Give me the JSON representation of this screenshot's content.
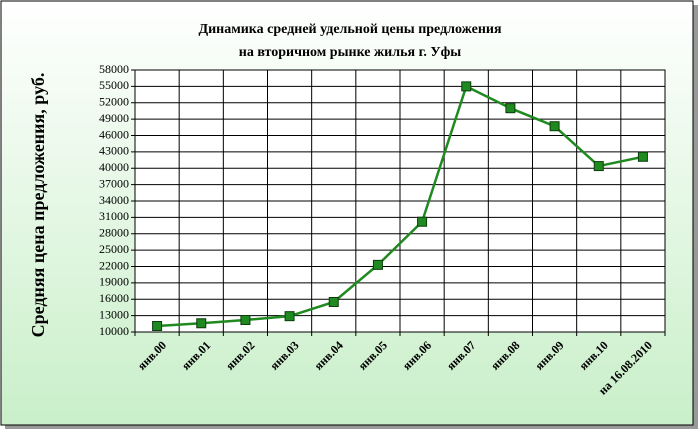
{
  "chart_data": {
    "type": "line",
    "title": [
      "Динамика средней удельной цены предложения",
      "на вторичном рынке жилья г. Уфы"
    ],
    "y_label": "Средняя цена предложения, руб.",
    "categories": [
      "янв.00",
      "янв.01",
      "янв.02",
      "янв.03",
      "янв.04",
      "янв.05",
      "янв.06",
      "янв.07",
      "янв.08",
      "янв.09",
      "янв.10",
      "на 16.08.2010"
    ],
    "values": [
      11100,
      11600,
      12200,
      12900,
      15500,
      22300,
      30200,
      55000,
      51000,
      47700,
      40400,
      42100
    ],
    "color": "#1f8a1f",
    "ylim": [
      10000,
      58000
    ],
    "yticks": [
      10000,
      13000,
      16000,
      19000,
      22000,
      25000,
      28000,
      31000,
      34000,
      37000,
      40000,
      43000,
      46000,
      49000,
      52000,
      55000,
      58000
    ],
    "grid": true
  }
}
